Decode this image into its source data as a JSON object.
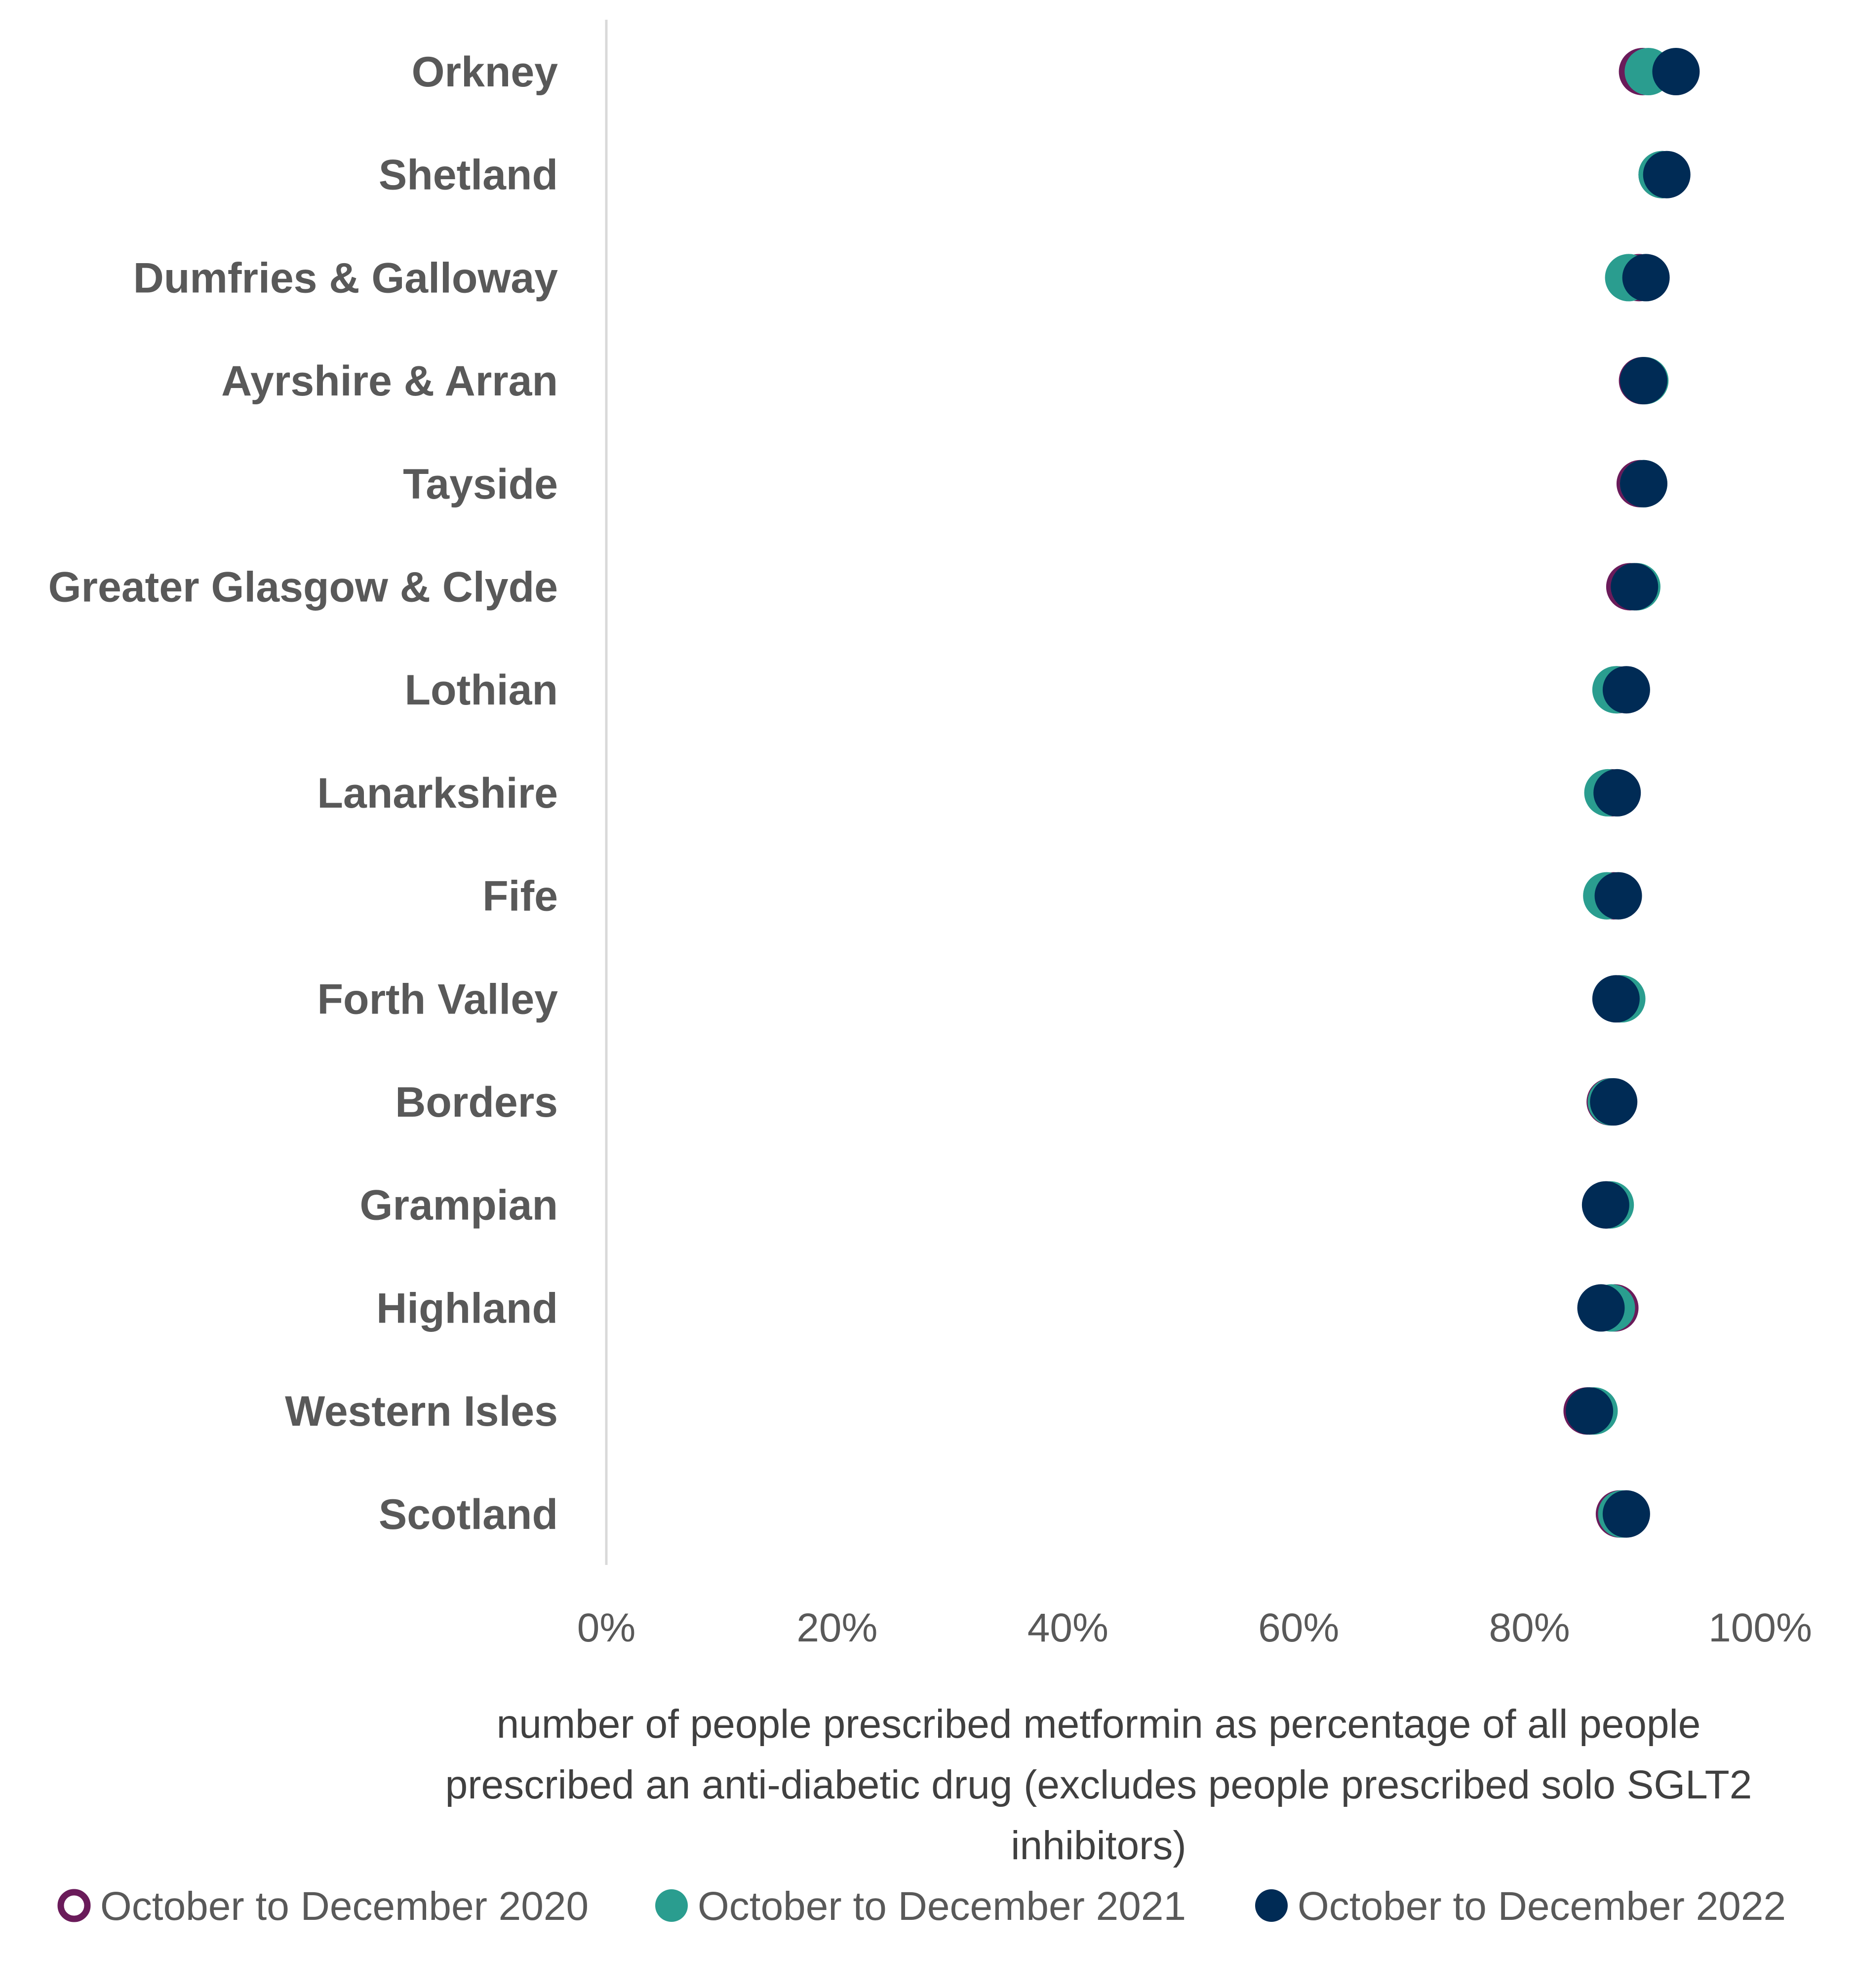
{
  "chart_data": {
    "type": "scatter",
    "orientation": "horizontal-dot-plot",
    "categories": [
      "Orkney",
      "Shetland",
      "Dumfries & Galloway",
      "Ayrshire & Arran",
      "Tayside",
      "Greater Glasgow & Clyde",
      "Lothian",
      "Lanarkshire",
      "Fife",
      "Forth Valley",
      "Borders",
      "Grampian",
      "Highland",
      "Western Isles",
      "Scotland"
    ],
    "series": [
      {
        "name": "October to December 2020",
        "color": "#6A1B5A",
        "marker": "open-circle",
        "values": [
          89.8,
          91.5,
          89.5,
          89.8,
          89.6,
          88.7,
          87.6,
          87.1,
          87.3,
          87.8,
          87.0,
          86.7,
          87.4,
          85.0,
          87.8
        ]
      },
      {
        "name": "October to December 2021",
        "color": "#2A9D8F",
        "marker": "filled-circle",
        "values": [
          90.3,
          91.5,
          88.6,
          90.0,
          89.9,
          89.3,
          87.5,
          86.8,
          86.7,
          88.0,
          87.1,
          87.0,
          87.1,
          85.6,
          88.0
        ]
      },
      {
        "name": "October to December 2022",
        "color": "#002B55",
        "marker": "filled-circle",
        "values": [
          92.7,
          91.9,
          90.1,
          89.9,
          89.9,
          89.1,
          88.4,
          87.6,
          87.7,
          87.5,
          87.3,
          86.6,
          86.2,
          85.2,
          88.4
        ]
      }
    ],
    "x_axis": {
      "min": 0,
      "max": 100,
      "ticks": [
        "0%",
        "20%",
        "40%",
        "60%",
        "80%",
        "100%"
      ],
      "label": "number of people prescribed metformin as percentage of all people prescribed an anti-diabetic drug (excludes people prescribed solo SGLT2 inhibitors)"
    },
    "axis_title_lines": [
      "number of people prescribed metformin as percentage of all people",
      "prescribed an anti-diabetic drug (excludes people prescribed solo SGLT2",
      "inhibitors)"
    ],
    "gridlines": false,
    "legend_position": "bottom"
  }
}
